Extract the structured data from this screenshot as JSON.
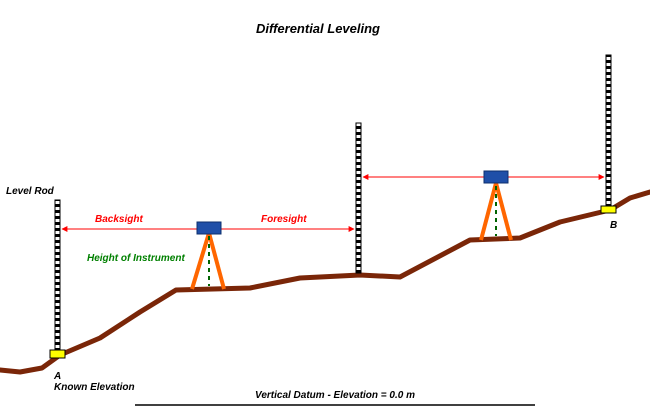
{
  "title": "Differential Leveling",
  "labels": {
    "level_rod": "Level Rod",
    "backsight": "Backsight",
    "foresight": "Foresight",
    "height_of_instrument": "Height of Instrument",
    "point_a": "A",
    "known_elevation": "Known Elevation",
    "point_b": "B",
    "datum": "Vertical Datum - Elevation = 0.0 m"
  },
  "colors": {
    "ground": "#7a2608",
    "sight_line": "#ff0000",
    "sight_text": "#ff0000",
    "hi_text": "#008000",
    "tripod": "#ff6600",
    "instrument": "#1f4fa8",
    "benchmark": "#ffff00",
    "rod": "#000000"
  }
}
